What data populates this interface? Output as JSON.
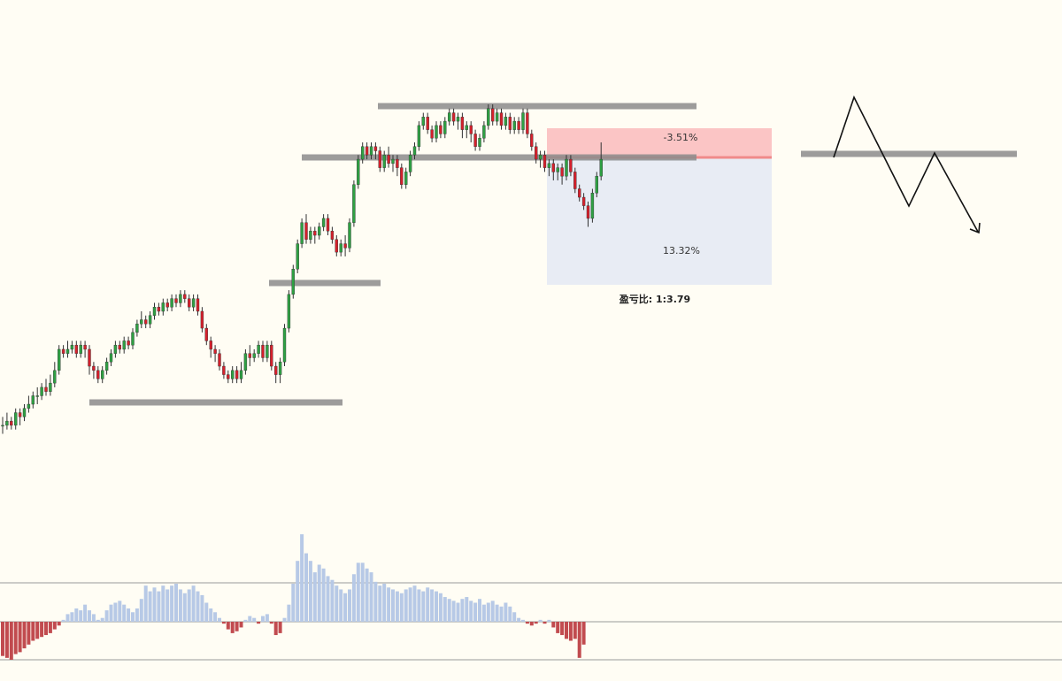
{
  "chart_data": [
    {
      "type": "candlestick",
      "title": "",
      "xlabel": "",
      "ylabel": "",
      "ylim": [
        0,
        100
      ],
      "colors": {
        "up": "#2ea043",
        "down": "#d4202c",
        "wick": "#333333"
      },
      "candles_note_units": "price (arbitrary, 0-100 scale)",
      "candles": [
        [
          27,
          27,
          25,
          29
        ],
        [
          27,
          28,
          26,
          30
        ],
        [
          28,
          27,
          26,
          29
        ],
        [
          27,
          30,
          26,
          31
        ],
        [
          30,
          29,
          27,
          31
        ],
        [
          29,
          31,
          28,
          32
        ],
        [
          31,
          32,
          30,
          34
        ],
        [
          32,
          34,
          31,
          35
        ],
        [
          34,
          34,
          32,
          36
        ],
        [
          34,
          36,
          33,
          37
        ],
        [
          36,
          35,
          34,
          38
        ],
        [
          35,
          37,
          34,
          39
        ],
        [
          37,
          40,
          36,
          42
        ],
        [
          40,
          45,
          39,
          46
        ],
        [
          45,
          44,
          43,
          46
        ],
        [
          44,
          45,
          43,
          47
        ],
        [
          45,
          46,
          44,
          47
        ],
        [
          46,
          44,
          43,
          47
        ],
        [
          44,
          46,
          43,
          47
        ],
        [
          46,
          45,
          43,
          47
        ],
        [
          45,
          41,
          39,
          46
        ],
        [
          41,
          40,
          38,
          42
        ],
        [
          40,
          38,
          37,
          41
        ],
        [
          38,
          40,
          37,
          41
        ],
        [
          40,
          42,
          39,
          43
        ],
        [
          42,
          44,
          41,
          45
        ],
        [
          44,
          46,
          43,
          47
        ],
        [
          46,
          45,
          44,
          47
        ],
        [
          45,
          47,
          44,
          48
        ],
        [
          47,
          46,
          45,
          48
        ],
        [
          46,
          49,
          45,
          50
        ],
        [
          49,
          51,
          48,
          52
        ],
        [
          51,
          52,
          50,
          54
        ],
        [
          52,
          51,
          50,
          53
        ],
        [
          51,
          53,
          50,
          54
        ],
        [
          53,
          55,
          52,
          56
        ],
        [
          55,
          54,
          53,
          56
        ],
        [
          54,
          56,
          53,
          57
        ],
        [
          56,
          55,
          54,
          57
        ],
        [
          55,
          57,
          54,
          58
        ],
        [
          57,
          56,
          55,
          58
        ],
        [
          56,
          58,
          55,
          59
        ],
        [
          58,
          57,
          56,
          59
        ],
        [
          57,
          55,
          54,
          58
        ],
        [
          55,
          57,
          54,
          58
        ],
        [
          57,
          54,
          53,
          58
        ],
        [
          54,
          50,
          49,
          55
        ],
        [
          50,
          47,
          46,
          51
        ],
        [
          47,
          45,
          43,
          48
        ],
        [
          45,
          44,
          42,
          46
        ],
        [
          44,
          41,
          40,
          45
        ],
        [
          41,
          39,
          38,
          42
        ],
        [
          39,
          38,
          37,
          40
        ],
        [
          38,
          40,
          37,
          41
        ],
        [
          40,
          38,
          37,
          41
        ],
        [
          38,
          40,
          37,
          42
        ],
        [
          40,
          44,
          39,
          45
        ],
        [
          44,
          43,
          41,
          46
        ],
        [
          43,
          44,
          42,
          45
        ],
        [
          44,
          46,
          43,
          47
        ],
        [
          46,
          43,
          42,
          47
        ],
        [
          43,
          46,
          42,
          47
        ],
        [
          46,
          41,
          40,
          47
        ],
        [
          41,
          39,
          37,
          42
        ],
        [
          39,
          42,
          37,
          43
        ],
        [
          42,
          50,
          41,
          51
        ],
        [
          50,
          58,
          49,
          59
        ],
        [
          58,
          64,
          57,
          65
        ],
        [
          64,
          70,
          63,
          71
        ],
        [
          70,
          75,
          69,
          76
        ],
        [
          75,
          71,
          70,
          77
        ],
        [
          71,
          73,
          70,
          74
        ],
        [
          73,
          72,
          70,
          74
        ],
        [
          72,
          74,
          71,
          75
        ],
        [
          74,
          76,
          73,
          77
        ],
        [
          76,
          73,
          72,
          77
        ],
        [
          73,
          71,
          70,
          74
        ],
        [
          71,
          68,
          67,
          72
        ],
        [
          68,
          70,
          67,
          71
        ],
        [
          70,
          69,
          67,
          72
        ],
        [
          69,
          75,
          68,
          76
        ],
        [
          75,
          84,
          74,
          85
        ],
        [
          84,
          90,
          83,
          91
        ],
        [
          90,
          93,
          89,
          94
        ],
        [
          93,
          91,
          90,
          94
        ],
        [
          91,
          93,
          90,
          94
        ],
        [
          93,
          92,
          90,
          94
        ],
        [
          92,
          88,
          87,
          93
        ],
        [
          88,
          91,
          87,
          92
        ],
        [
          91,
          89,
          88,
          93
        ],
        [
          89,
          90,
          87,
          91
        ],
        [
          90,
          88,
          86,
          91
        ],
        [
          88,
          84,
          83,
          89
        ],
        [
          84,
          87,
          83,
          88
        ],
        [
          87,
          91,
          86,
          92
        ],
        [
          91,
          93,
          90,
          94
        ],
        [
          93,
          98,
          92,
          99
        ],
        [
          98,
          100,
          97,
          101
        ],
        [
          100,
          97,
          96,
          101
        ],
        [
          97,
          95,
          94,
          98
        ],
        [
          95,
          98,
          94,
          99
        ],
        [
          98,
          96,
          95,
          99
        ],
        [
          96,
          99,
          95,
          100
        ],
        [
          99,
          101,
          98,
          102
        ],
        [
          101,
          99,
          98,
          102
        ],
        [
          99,
          100,
          97,
          101
        ],
        [
          100,
          97,
          95,
          101
        ],
        [
          97,
          98,
          95,
          99
        ],
        [
          98,
          96,
          94,
          99
        ],
        [
          96,
          93,
          92,
          97
        ],
        [
          93,
          95,
          92,
          96
        ],
        [
          95,
          98,
          94,
          99
        ],
        [
          98,
          102,
          97,
          103
        ],
        [
          102,
          99,
          98,
          103
        ],
        [
          99,
          101,
          98,
          102
        ],
        [
          101,
          98,
          97,
          102
        ],
        [
          98,
          100,
          97,
          101
        ],
        [
          100,
          97,
          96,
          101
        ],
        [
          97,
          99,
          96,
          100
        ],
        [
          99,
          97,
          96,
          100
        ],
        [
          97,
          101,
          96,
          102
        ],
        [
          101,
          96,
          95,
          102
        ],
        [
          96,
          93,
          92,
          97
        ],
        [
          93,
          90,
          89,
          94
        ],
        [
          90,
          91,
          88,
          92
        ],
        [
          91,
          88,
          87,
          92
        ],
        [
          88,
          89,
          86,
          90
        ],
        [
          89,
          87,
          85,
          90
        ],
        [
          87,
          88,
          85,
          89
        ],
        [
          88,
          86,
          84,
          89
        ],
        [
          86,
          90,
          85,
          91
        ],
        [
          90,
          87,
          86,
          91
        ],
        [
          87,
          83,
          82,
          88
        ],
        [
          83,
          81,
          80,
          84
        ],
        [
          81,
          79,
          78,
          82
        ],
        [
          79,
          76,
          74,
          80
        ],
        [
          76,
          82,
          75,
          83
        ],
        [
          82,
          86,
          81,
          87
        ],
        [
          86,
          90,
          85,
          94
        ]
      ]
    },
    {
      "type": "bar",
      "title": "",
      "xlabel": "",
      "ylabel": "",
      "ylim": [
        -1,
        2.3
      ],
      "colors": {
        "positive": "#b7c9e6",
        "negative": "#c14b4f"
      },
      "values": [
        -0.9,
        -0.95,
        -1.0,
        -0.85,
        -0.8,
        -0.7,
        -0.6,
        -0.5,
        -0.45,
        -0.4,
        -0.35,
        -0.3,
        -0.2,
        -0.1,
        0.05,
        0.2,
        0.25,
        0.35,
        0.3,
        0.45,
        0.3,
        0.2,
        0.05,
        0.1,
        0.3,
        0.45,
        0.5,
        0.55,
        0.45,
        0.35,
        0.25,
        0.35,
        0.6,
        0.95,
        0.8,
        0.9,
        0.8,
        0.95,
        0.85,
        0.95,
        1.0,
        0.85,
        0.75,
        0.85,
        0.95,
        0.8,
        0.7,
        0.5,
        0.35,
        0.25,
        0.1,
        -0.05,
        -0.2,
        -0.3,
        -0.25,
        -0.15,
        0.05,
        0.15,
        0.1,
        -0.05,
        0.15,
        0.2,
        -0.05,
        -0.35,
        -0.3,
        0.1,
        0.45,
        1.0,
        1.6,
        2.3,
        1.8,
        1.6,
        1.3,
        1.5,
        1.4,
        1.2,
        1.1,
        0.95,
        0.85,
        0.75,
        0.85,
        1.25,
        1.55,
        1.55,
        1.4,
        1.3,
        1.05,
        0.95,
        1.0,
        0.9,
        0.85,
        0.8,
        0.75,
        0.85,
        0.9,
        0.95,
        0.85,
        0.8,
        0.9,
        0.85,
        0.8,
        0.75,
        0.65,
        0.6,
        0.55,
        0.5,
        0.6,
        0.65,
        0.55,
        0.5,
        0.6,
        0.45,
        0.5,
        0.55,
        0.45,
        0.4,
        0.5,
        0.4,
        0.25,
        0.1,
        0.05,
        -0.05,
        -0.1,
        -0.05,
        0.05,
        -0.05,
        0.05,
        -0.15,
        -0.3,
        -0.35,
        -0.45,
        -0.5,
        -0.45,
        -0.95,
        -0.6
      ]
    }
  ],
  "annotations": {
    "stop_label": "-3.51%",
    "target_label": "13.32%",
    "ratio_label": "盈亏比: 1:3.79",
    "stop_fill": "#fbc5c5",
    "target_fill": "#e8ecf4",
    "level_color": "#8c8c8c"
  }
}
